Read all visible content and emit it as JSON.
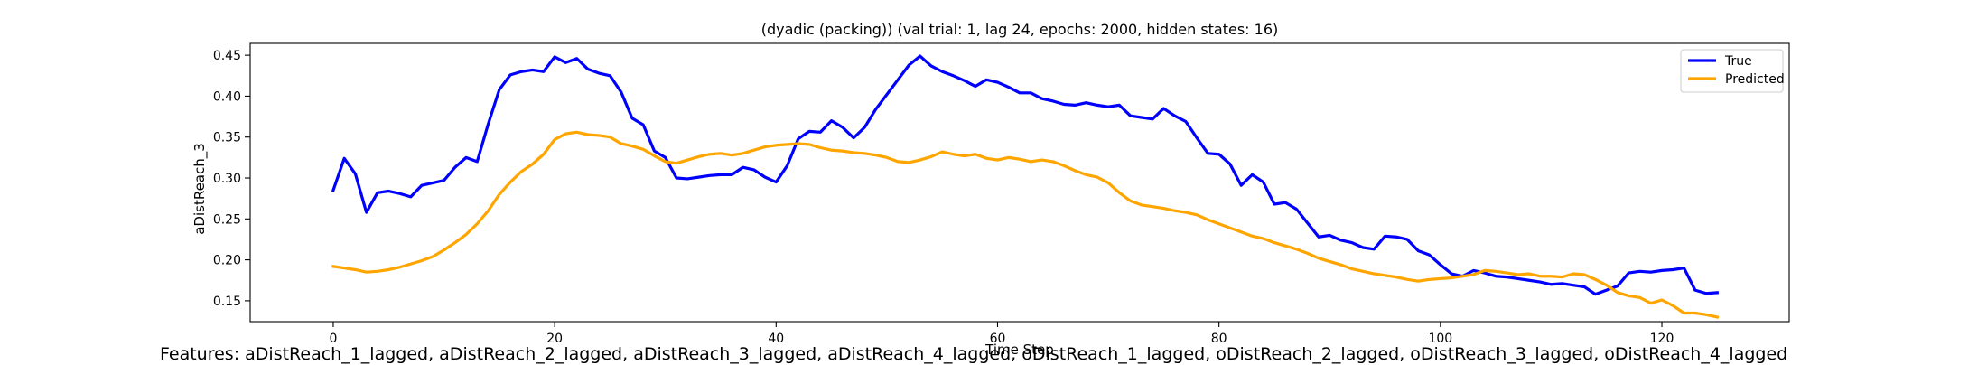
{
  "chart_data": {
    "type": "line",
    "title": "(dyadic (packing)) (val trial: 1, lag 24, epochs: 2000, hidden states: 16)",
    "xlabel": "Time Step",
    "ylabel": "aDistReach_3",
    "xlim": [
      -7.5,
      131.5
    ],
    "ylim": [
      0.1245,
      0.4645
    ],
    "xticks": [
      0,
      20,
      40,
      60,
      80,
      100,
      120
    ],
    "yticks": [
      0.15,
      0.2,
      0.25,
      0.3,
      0.35,
      0.4,
      0.45
    ],
    "xtick_labels": [
      "0",
      "20",
      "40",
      "60",
      "80",
      "100",
      "120"
    ],
    "ytick_labels": [
      "0.15",
      "0.20",
      "0.25",
      "0.30",
      "0.35",
      "0.40",
      "0.45"
    ],
    "grid": false,
    "legend": "top-right",
    "series": [
      {
        "name": "True",
        "color": "#0000ff",
        "values": [
          0.285,
          0.324,
          0.305,
          0.258,
          0.282,
          0.284,
          0.281,
          0.277,
          0.291,
          0.294,
          0.297,
          0.313,
          0.325,
          0.32,
          0.366,
          0.408,
          0.426,
          0.43,
          0.432,
          0.43,
          0.448,
          0.441,
          0.446,
          0.433,
          0.428,
          0.425,
          0.405,
          0.373,
          0.365,
          0.333,
          0.325,
          0.3,
          0.299,
          0.301,
          0.303,
          0.304,
          0.304,
          0.313,
          0.31,
          0.301,
          0.295,
          0.315,
          0.348,
          0.357,
          0.356,
          0.37,
          0.362,
          0.349,
          0.362,
          0.384,
          0.402,
          0.42,
          0.438,
          0.449,
          0.437,
          0.43,
          0.425,
          0.419,
          0.412,
          0.42,
          0.417,
          0.411,
          0.404,
          0.404,
          0.397,
          0.394,
          0.39,
          0.389,
          0.392,
          0.389,
          0.387,
          0.389,
          0.376,
          0.374,
          0.372,
          0.385,
          0.376,
          0.369,
          0.349,
          0.33,
          0.329,
          0.317,
          0.291,
          0.304,
          0.295,
          0.268,
          0.27,
          0.262,
          0.245,
          0.228,
          0.23,
          0.224,
          0.221,
          0.215,
          0.213,
          0.229,
          0.228,
          0.225,
          0.211,
          0.206,
          0.194,
          0.183,
          0.18,
          0.187,
          0.184,
          0.18,
          0.179,
          0.177,
          0.175,
          0.173,
          0.17,
          0.171,
          0.169,
          0.167,
          0.158,
          0.163,
          0.168,
          0.184,
          0.186,
          0.185,
          0.187,
          0.188,
          0.19,
          0.163,
          0.159,
          0.16
        ]
      },
      {
        "name": "Predicted",
        "color": "#ffa500",
        "values": [
          0.192,
          0.19,
          0.188,
          0.185,
          0.186,
          0.188,
          0.191,
          0.195,
          0.199,
          0.204,
          0.212,
          0.221,
          0.231,
          0.244,
          0.26,
          0.28,
          0.295,
          0.308,
          0.317,
          0.329,
          0.347,
          0.354,
          0.356,
          0.353,
          0.352,
          0.35,
          0.342,
          0.339,
          0.335,
          0.327,
          0.32,
          0.318,
          0.322,
          0.326,
          0.329,
          0.33,
          0.328,
          0.33,
          0.334,
          0.338,
          0.34,
          0.341,
          0.342,
          0.341,
          0.337,
          0.334,
          0.333,
          0.331,
          0.33,
          0.328,
          0.325,
          0.32,
          0.319,
          0.322,
          0.326,
          0.332,
          0.329,
          0.327,
          0.329,
          0.324,
          0.322,
          0.325,
          0.323,
          0.32,
          0.322,
          0.32,
          0.315,
          0.309,
          0.304,
          0.301,
          0.294,
          0.282,
          0.272,
          0.267,
          0.265,
          0.263,
          0.26,
          0.258,
          0.255,
          0.249,
          0.244,
          0.239,
          0.234,
          0.229,
          0.226,
          0.221,
          0.217,
          0.213,
          0.208,
          0.202,
          0.198,
          0.194,
          0.189,
          0.186,
          0.183,
          0.181,
          0.179,
          0.176,
          0.174,
          0.176,
          0.177,
          0.178,
          0.18,
          0.182,
          0.187,
          0.186,
          0.184,
          0.182,
          0.183,
          0.18,
          0.18,
          0.179,
          0.183,
          0.182,
          0.176,
          0.169,
          0.16,
          0.156,
          0.154,
          0.147,
          0.151,
          0.144,
          0.135,
          0.135,
          0.133,
          0.13
        ]
      }
    ]
  },
  "caption": "Features: aDistReach_1_lagged, aDistReach_2_lagged, aDistReach_3_lagged, aDistReach_4_lagged, oDistReach_1_lagged, oDistReach_2_lagged, oDistReach_3_lagged, oDistReach_4_lagged"
}
